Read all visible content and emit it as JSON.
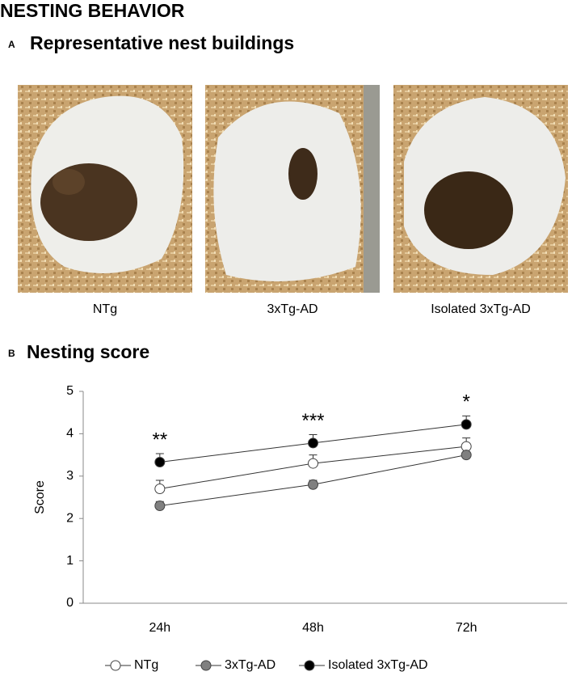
{
  "header": {
    "title": "NESTING BEHAVIOR"
  },
  "panel_a": {
    "label": "A",
    "title": "Representative nest buildings",
    "captions": [
      "NTg",
      "3xTg-AD",
      "Isolated 3xTg-AD"
    ]
  },
  "panel_b": {
    "label": "B",
    "title": "Nesting score"
  },
  "chart_data": {
    "type": "line",
    "y_label": "Score",
    "categories": [
      "24h",
      "48h",
      "72h"
    ],
    "series": [
      {
        "name": "NTg",
        "color": "#ffffff",
        "values": [
          2.7,
          3.3,
          3.7
        ],
        "errors": [
          0.2,
          0.2,
          0.2
        ]
      },
      {
        "name": "3xTg-AD",
        "color": "#808080",
        "values": [
          2.3,
          2.8,
          3.5
        ],
        "errors": [
          0.1,
          0.1,
          0.05
        ]
      },
      {
        "name": "Isolated 3xTg-AD",
        "color": "#000000",
        "values": [
          3.33,
          3.78,
          4.22
        ],
        "errors": [
          0.2,
          0.2,
          0.2
        ]
      }
    ],
    "annotations": [
      "**",
      "***",
      "*"
    ],
    "ylim": [
      0,
      5
    ],
    "yticks": [
      0,
      1,
      2,
      3,
      4,
      5
    ],
    "grid": false
  }
}
